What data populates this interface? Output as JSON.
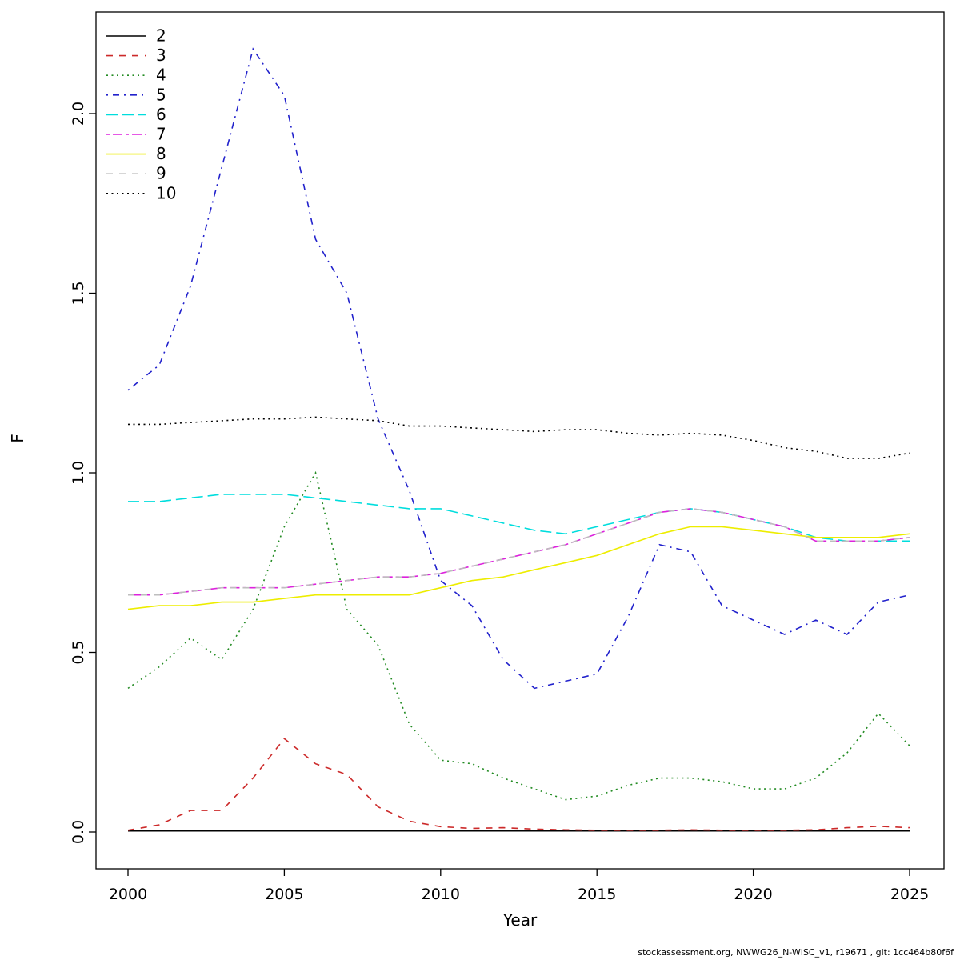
{
  "figure": {
    "y_axis_title": "F",
    "x_axis_title": "Year",
    "footer": "stockassessment.org, NWWG26_N-WISC_v1, r19671 , git: 1cc464b80f6f"
  },
  "chart_data": {
    "type": "line",
    "title": "",
    "xlabel": "Year",
    "ylabel": "F",
    "legend_position": "top-left",
    "grid": false,
    "x_range": [
      2000,
      2025
    ],
    "ylim": [
      0,
      2.2
    ],
    "x_ticks": [
      2000,
      2005,
      2010,
      2015,
      2020,
      2025
    ],
    "y_ticks": [
      0.0,
      0.5,
      1.0,
      1.5,
      2.0
    ],
    "y_tick_labels": [
      "0.0",
      "0.5",
      "1.0",
      "1.5",
      "2.0"
    ],
    "x": [
      2000,
      2001,
      2002,
      2003,
      2004,
      2005,
      2006,
      2007,
      2008,
      2009,
      2010,
      2011,
      2012,
      2013,
      2014,
      2015,
      2016,
      2017,
      2018,
      2019,
      2020,
      2021,
      2022,
      2023,
      2024,
      2025
    ],
    "series": [
      {
        "name": "2",
        "color": "#000000",
        "dash": "solid",
        "values": [
          0.003,
          0.003,
          0.003,
          0.003,
          0.003,
          0.003,
          0.003,
          0.003,
          0.003,
          0.003,
          0.003,
          0.003,
          0.003,
          0.003,
          0.003,
          0.003,
          0.003,
          0.003,
          0.003,
          0.003,
          0.003,
          0.003,
          0.003,
          0.003,
          0.003,
          0.003
        ]
      },
      {
        "name": "3",
        "color": "#cc2a2a",
        "dash": "dashed",
        "values": [
          0.005,
          0.02,
          0.06,
          0.06,
          0.15,
          0.26,
          0.19,
          0.16,
          0.07,
          0.03,
          0.015,
          0.01,
          0.012,
          0.008,
          0.006,
          0.005,
          0.005,
          0.005,
          0.006,
          0.005,
          0.005,
          0.005,
          0.006,
          0.012,
          0.016,
          0.012
        ]
      },
      {
        "name": "4",
        "color": "#228b22",
        "dash": "dotted",
        "values": [
          0.4,
          0.46,
          0.54,
          0.48,
          0.62,
          0.85,
          1.0,
          0.62,
          0.52,
          0.3,
          0.2,
          0.19,
          0.15,
          0.12,
          0.09,
          0.1,
          0.13,
          0.15,
          0.15,
          0.14,
          0.12,
          0.12,
          0.15,
          0.22,
          0.33,
          0.24
        ]
      },
      {
        "name": "5",
        "color": "#2222cc",
        "dash": "dashdot",
        "values": [
          1.23,
          1.3,
          1.52,
          1.85,
          2.18,
          2.05,
          1.65,
          1.5,
          1.15,
          0.95,
          0.7,
          0.63,
          0.48,
          0.4,
          0.42,
          0.44,
          0.6,
          0.8,
          0.78,
          0.63,
          0.59,
          0.55,
          0.59,
          0.55,
          0.64,
          0.66
        ]
      },
      {
        "name": "6",
        "color": "#00dddd",
        "dash": "longdash",
        "values": [
          0.92,
          0.92,
          0.93,
          0.94,
          0.94,
          0.94,
          0.93,
          0.92,
          0.91,
          0.9,
          0.9,
          0.88,
          0.86,
          0.84,
          0.83,
          0.85,
          0.87,
          0.89,
          0.9,
          0.89,
          0.87,
          0.85,
          0.82,
          0.81,
          0.81,
          0.81
        ]
      },
      {
        "name": "7",
        "color": "#dd22dd",
        "dash": "twodash",
        "values": [
          0.66,
          0.66,
          0.67,
          0.68,
          0.68,
          0.68,
          0.69,
          0.7,
          0.71,
          0.71,
          0.72,
          0.74,
          0.76,
          0.78,
          0.8,
          0.83,
          0.86,
          0.89,
          0.9,
          0.89,
          0.87,
          0.85,
          0.81,
          0.81,
          0.81,
          0.82
        ]
      },
      {
        "name": "8",
        "color": "#eded00",
        "dash": "solid",
        "values": [
          0.62,
          0.63,
          0.63,
          0.64,
          0.64,
          0.65,
          0.66,
          0.66,
          0.66,
          0.66,
          0.68,
          0.7,
          0.71,
          0.73,
          0.75,
          0.77,
          0.8,
          0.83,
          0.85,
          0.85,
          0.84,
          0.83,
          0.82,
          0.82,
          0.82,
          0.83
        ]
      },
      {
        "name": "9",
        "color": "#bebebe",
        "dash": "dashed",
        "values": [
          0.66,
          0.66,
          0.67,
          0.68,
          0.68,
          0.68,
          0.69,
          0.7,
          0.71,
          0.71,
          0.72,
          0.74,
          0.76,
          0.78,
          0.8,
          0.83,
          0.86,
          0.89,
          0.9,
          0.89,
          0.87,
          0.85,
          0.81,
          0.81,
          0.81,
          0.82
        ]
      },
      {
        "name": "10",
        "color": "#000000",
        "dash": "dotted",
        "values": [
          1.135,
          1.135,
          1.14,
          1.145,
          1.15,
          1.15,
          1.155,
          1.15,
          1.145,
          1.13,
          1.13,
          1.125,
          1.12,
          1.115,
          1.12,
          1.12,
          1.11,
          1.105,
          1.11,
          1.105,
          1.09,
          1.07,
          1.06,
          1.04,
          1.04,
          1.055
        ]
      }
    ]
  }
}
